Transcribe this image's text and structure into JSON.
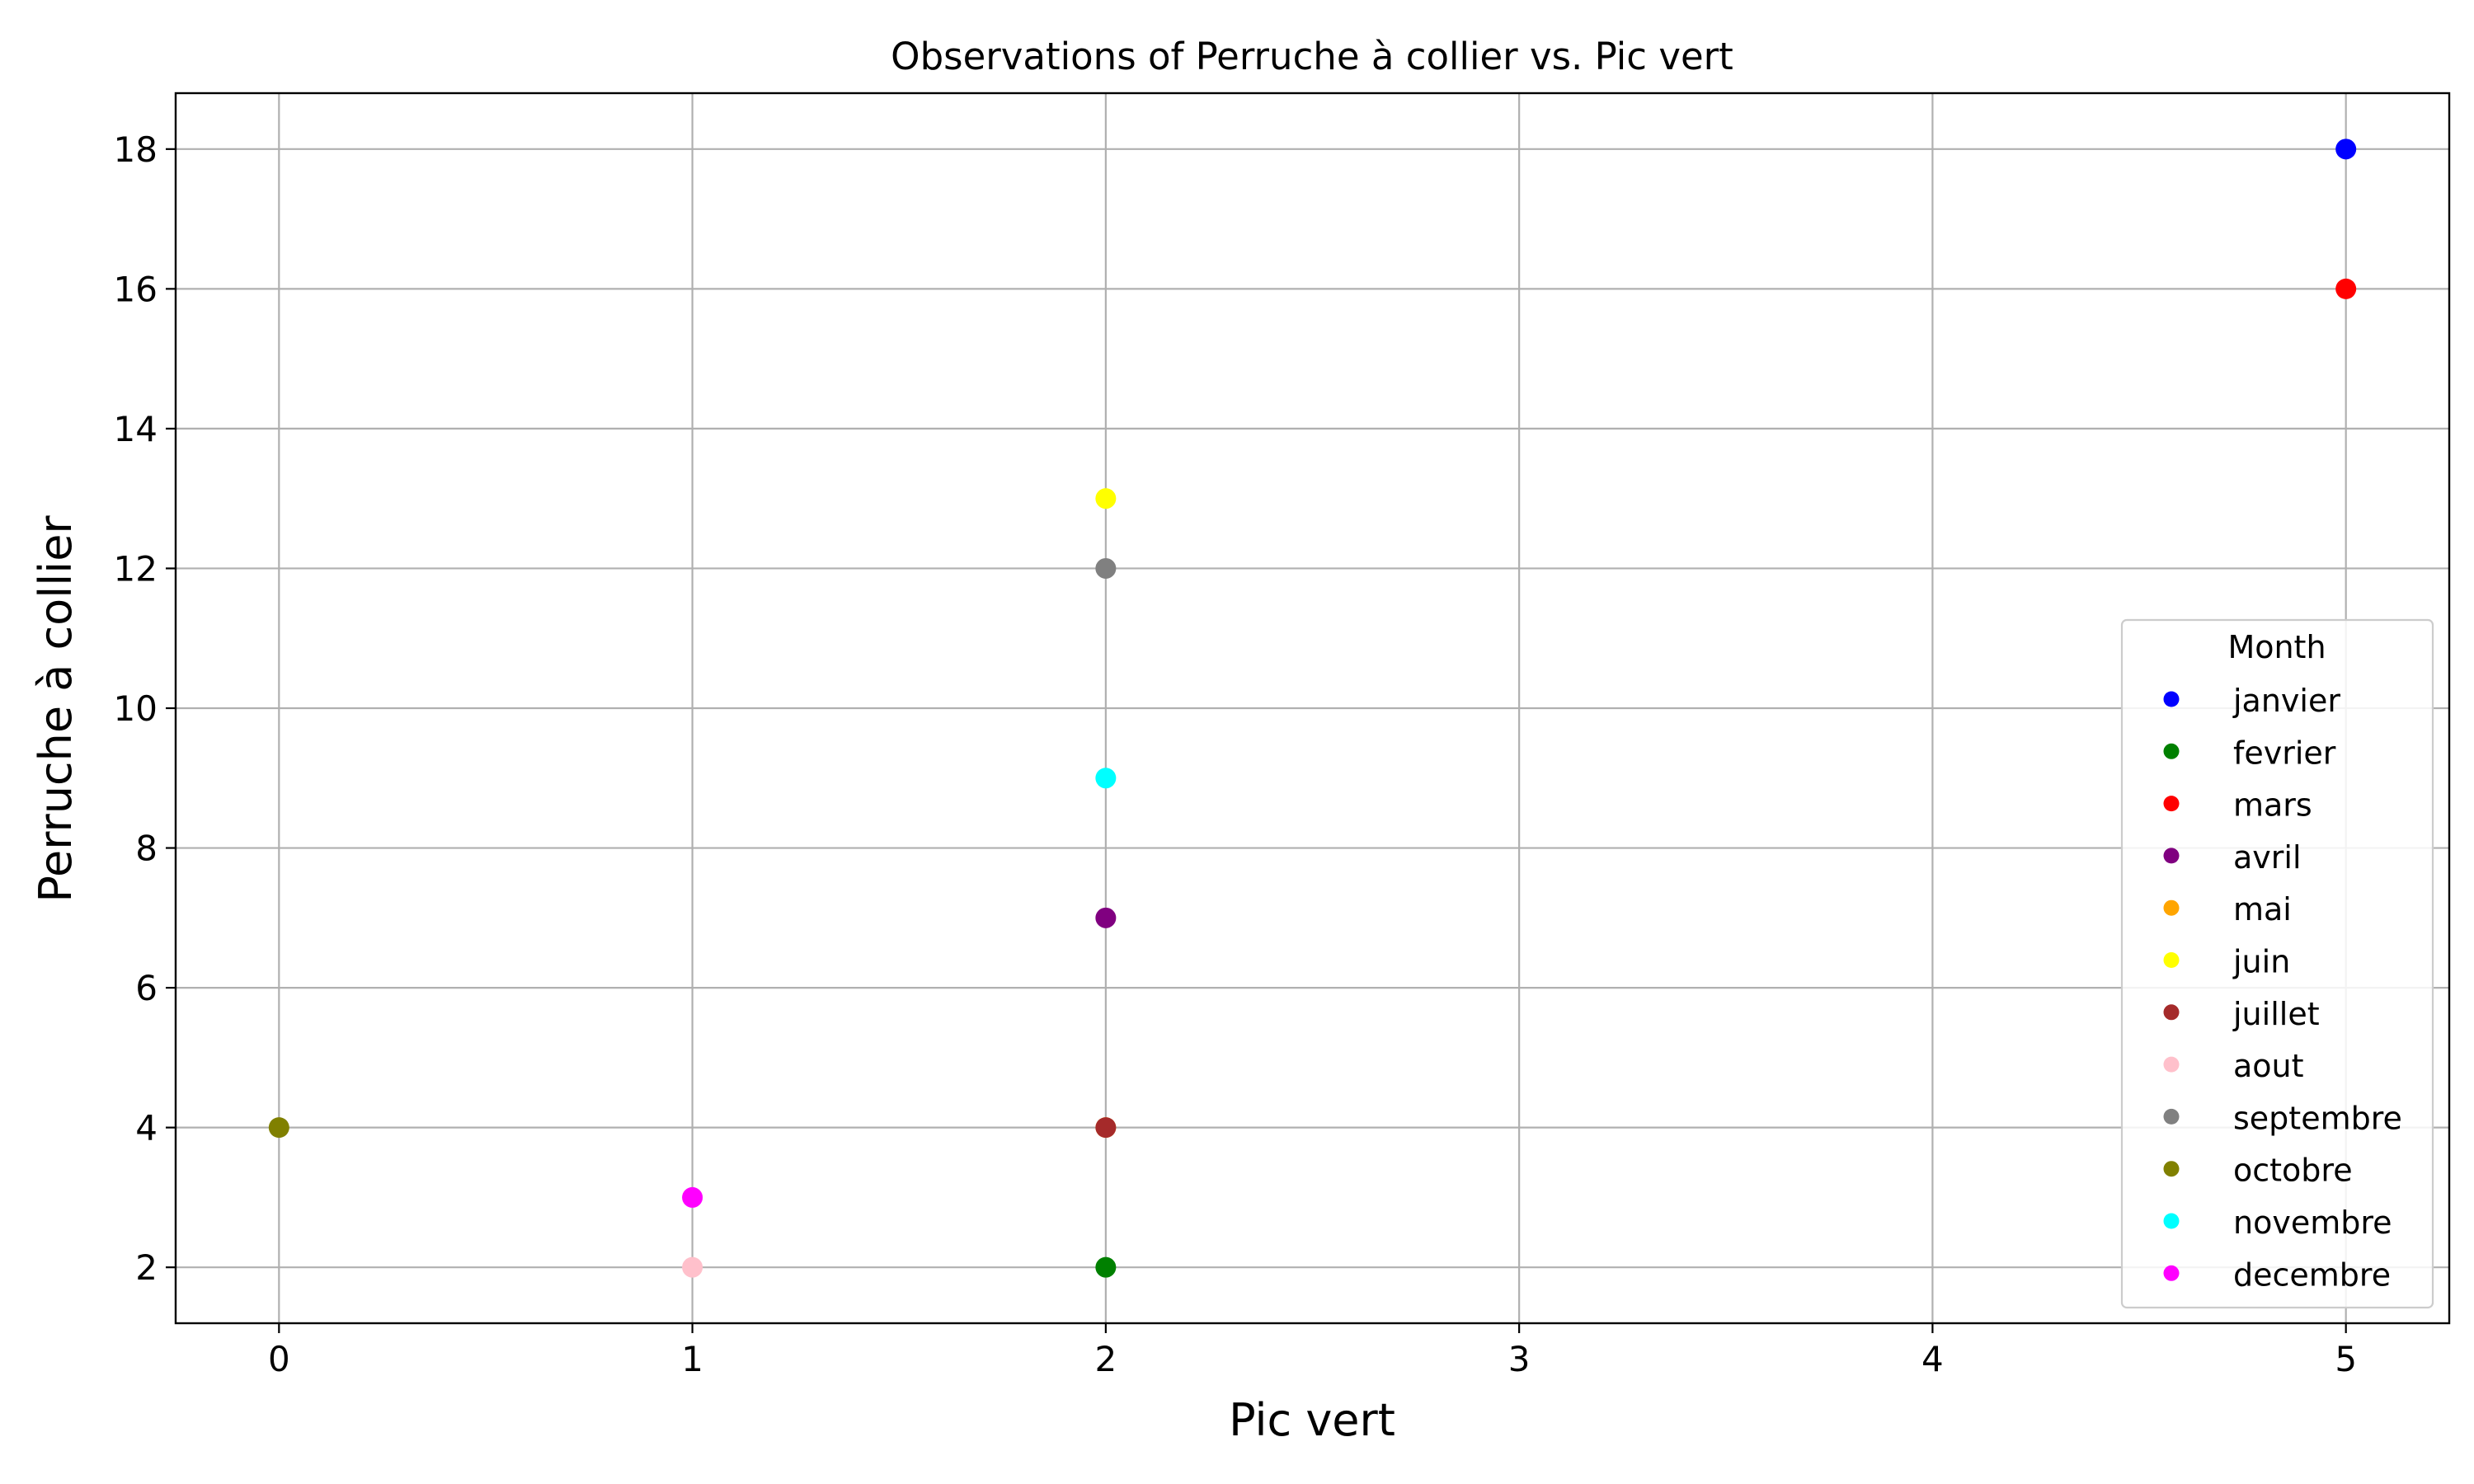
{
  "chart_data": {
    "type": "scatter",
    "title": "Observations of Perruche à collier vs. Pic vert",
    "xlabel": "Pic vert",
    "ylabel": "Perruche à collier",
    "xlim": [
      -0.25,
      5.25
    ],
    "ylim": [
      1.2,
      18.8
    ],
    "xticks": [
      0,
      1,
      2,
      3,
      4,
      5
    ],
    "yticks": [
      2,
      4,
      6,
      8,
      10,
      12,
      14,
      16,
      18
    ],
    "grid": true,
    "legend": {
      "title": "Month",
      "placement": "center-right"
    },
    "series": [
      {
        "name": "janvier",
        "color": "#0000ff",
        "x": 5,
        "y": 18
      },
      {
        "name": "fevrier",
        "color": "#008000",
        "x": 2,
        "y": 2
      },
      {
        "name": "mars",
        "color": "#ff0000",
        "x": 5,
        "y": 16
      },
      {
        "name": "avril",
        "color": "#800080",
        "x": 2,
        "y": 7
      },
      {
        "name": "mai",
        "color": "#ffa500",
        "x": 2,
        "y": 4
      },
      {
        "name": "juin",
        "color": "#ffff00",
        "x": 2,
        "y": 13
      },
      {
        "name": "juillet",
        "color": "#a52a2a",
        "x": 2,
        "y": 4
      },
      {
        "name": "aout",
        "color": "#ffc0cb",
        "x": 1,
        "y": 2
      },
      {
        "name": "septembre",
        "color": "#808080",
        "x": 2,
        "y": 12
      },
      {
        "name": "octobre",
        "color": "#808000",
        "x": 0,
        "y": 4
      },
      {
        "name": "novembre",
        "color": "#00ffff",
        "x": 2,
        "y": 9
      },
      {
        "name": "decembre",
        "color": "#ff00ff",
        "x": 1,
        "y": 3
      }
    ]
  }
}
